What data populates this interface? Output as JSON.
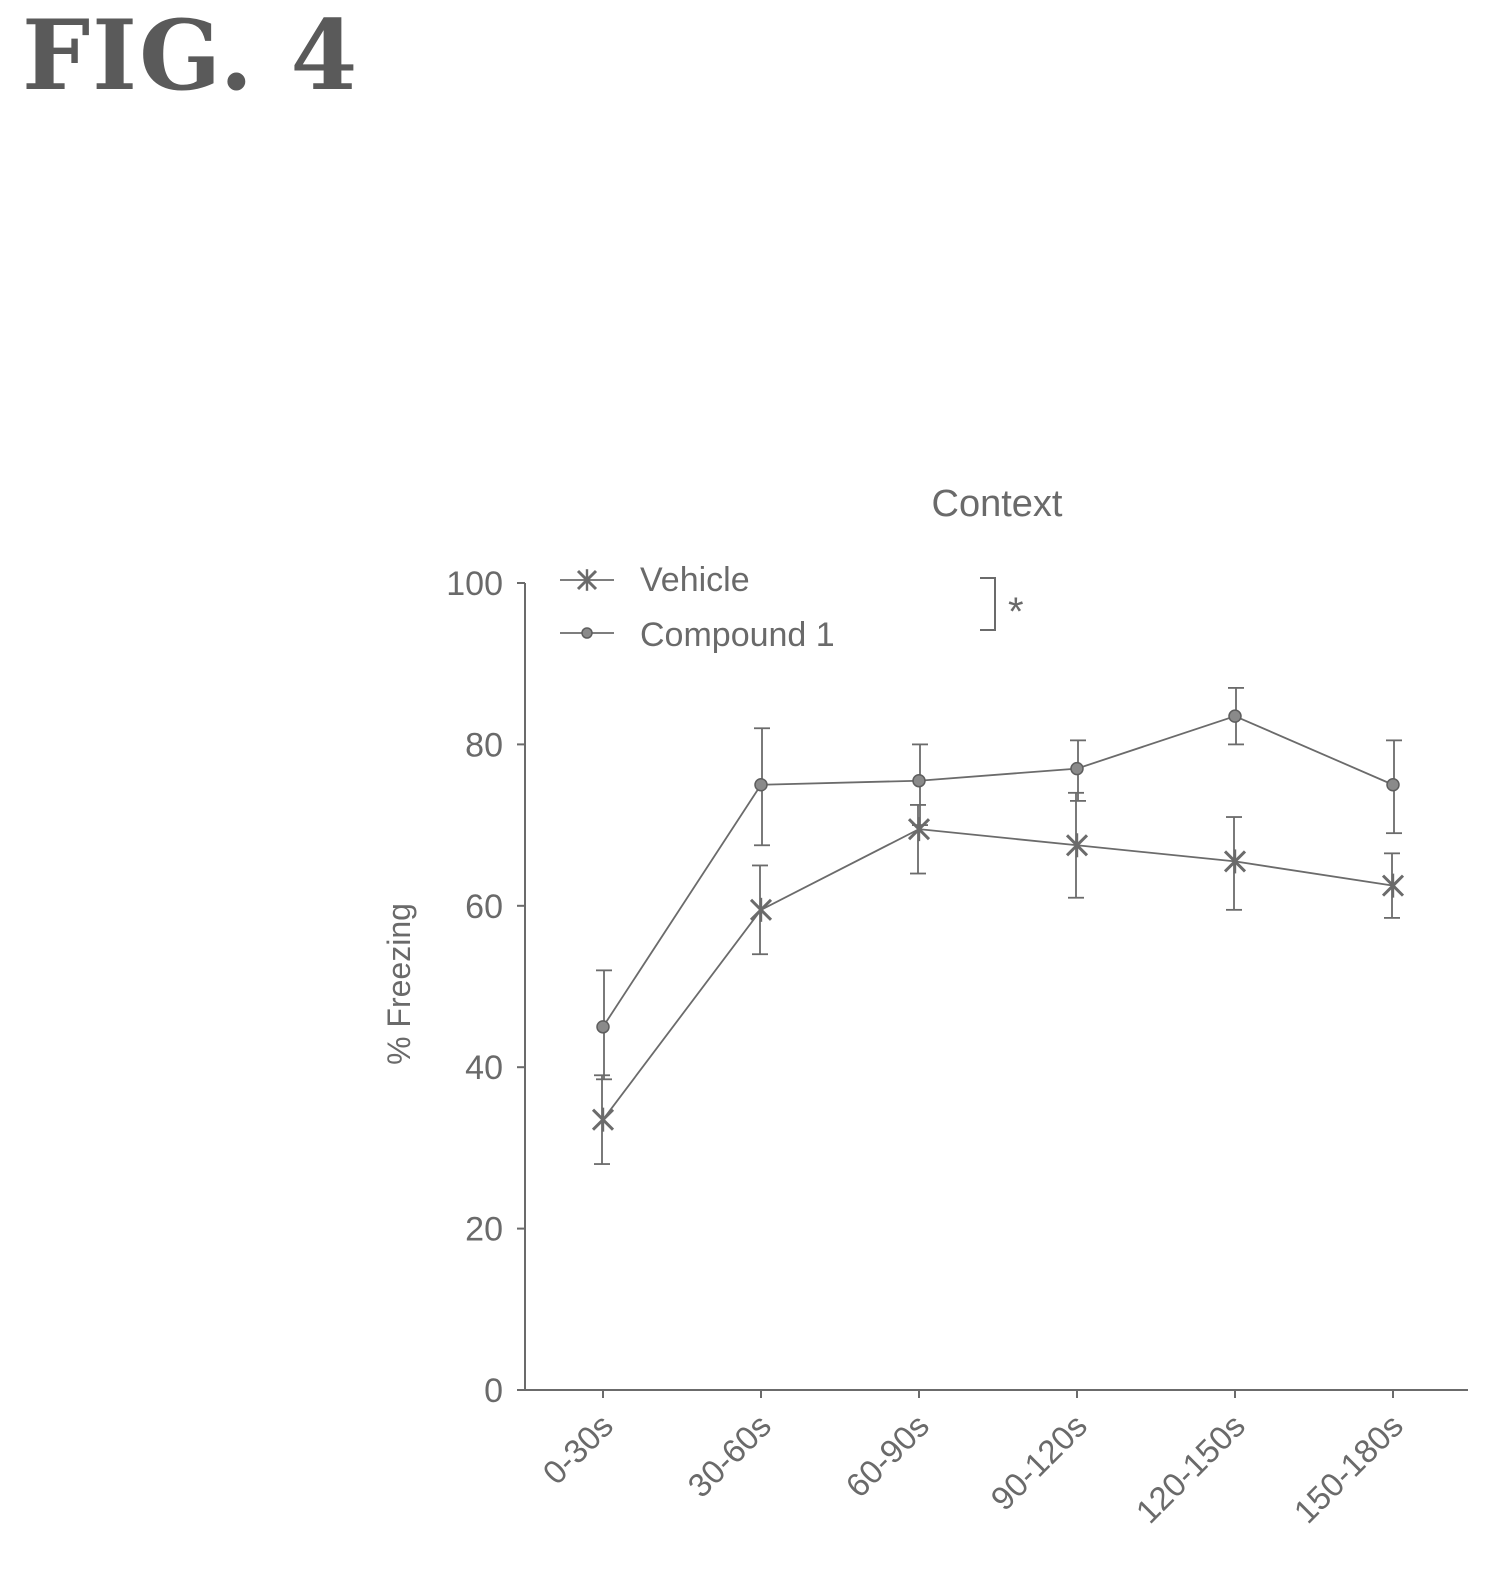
{
  "figure_label": "FIG. 4",
  "chart_data": {
    "type": "line",
    "title": "Context",
    "xlabel": "",
    "ylabel": "% Freezing",
    "categories": [
      "0-30s",
      "30-60s",
      "60-90s",
      "90-120s",
      "120-150s",
      "150-180s"
    ],
    "ylim": [
      0,
      100
    ],
    "yticks": [
      0,
      20,
      40,
      60,
      80,
      100
    ],
    "grid": false,
    "legend_position": "top-left",
    "series": [
      {
        "name": "Vehicle",
        "marker": "star",
        "values": [
          33.5,
          59.5,
          69.5,
          67.5,
          65.5,
          62.5
        ],
        "err_upper": [
          39,
          65,
          72.5,
          74,
          71,
          66.5
        ],
        "err_lower": [
          28,
          54,
          64,
          61,
          59.5,
          58.5
        ]
      },
      {
        "name": "Compound 1",
        "marker": "circle",
        "values": [
          45,
          75,
          75.5,
          77,
          83.5,
          75
        ],
        "err_upper": [
          52,
          82,
          80,
          80.5,
          87,
          80.5
        ],
        "err_lower": [
          38.5,
          67.5,
          70,
          73,
          80,
          69
        ]
      }
    ],
    "annotation": "*",
    "colors": {
      "line": "#6b6b6b",
      "text": "#6a6a6a"
    }
  }
}
